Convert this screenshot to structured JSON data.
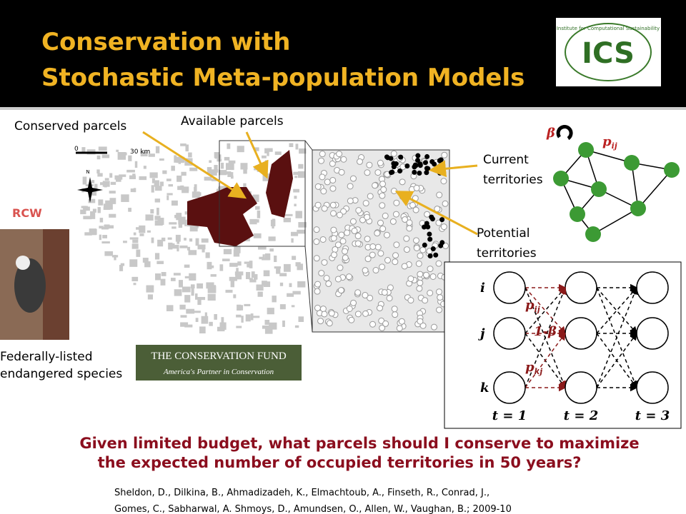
{
  "header": {
    "title_lines": [
      "Conservation with",
      "Stochastic Meta-population Models"
    ],
    "logo": {
      "text": "ICS",
      "ring": "Institute for Computational Sustainability"
    }
  },
  "map": {
    "labels": {
      "conserved": "Conserved parcels",
      "available": "Available parcels"
    },
    "scale": {
      "start": "0",
      "end": "30 km"
    },
    "north": "N",
    "current": [
      "Current",
      "territories"
    ],
    "potential": [
      "Potential",
      "territories"
    ]
  },
  "species": {
    "name": "RCW",
    "caption": [
      "Federally-listed",
      "endangered species"
    ]
  },
  "fund": {
    "name": "THE CONSERVATION FUND",
    "tagline": "America's Partner in Conservation"
  },
  "network": {
    "beta": "β",
    "edge": {
      "base": "p",
      "sub": "ij"
    }
  },
  "diagram": {
    "rows": [
      "i",
      "j",
      "k"
    ],
    "edges": [
      {
        "base": "p",
        "sub": "ij"
      },
      {
        "base": "1-β",
        "sub": ""
      },
      {
        "base": "p",
        "sub": "kj"
      }
    ],
    "times": [
      "t = 1",
      "t = 2",
      "t = 3"
    ]
  },
  "question": [
    "Given limited budget, what parcels should I conserve to maximize",
    "the expected number of occupied territories in 50 years?"
  ],
  "citation": [
    "Sheldon, D., Dilkina, B., Ahmadizadeh, K., Elmachtoub, A., Finseth, R., Conrad, J.,",
    "Gomes, C., Sabharwal, A. Shmoys, D., Amundsen, O., Allen, W., Vaughan, B.; 2009-10"
  ]
}
